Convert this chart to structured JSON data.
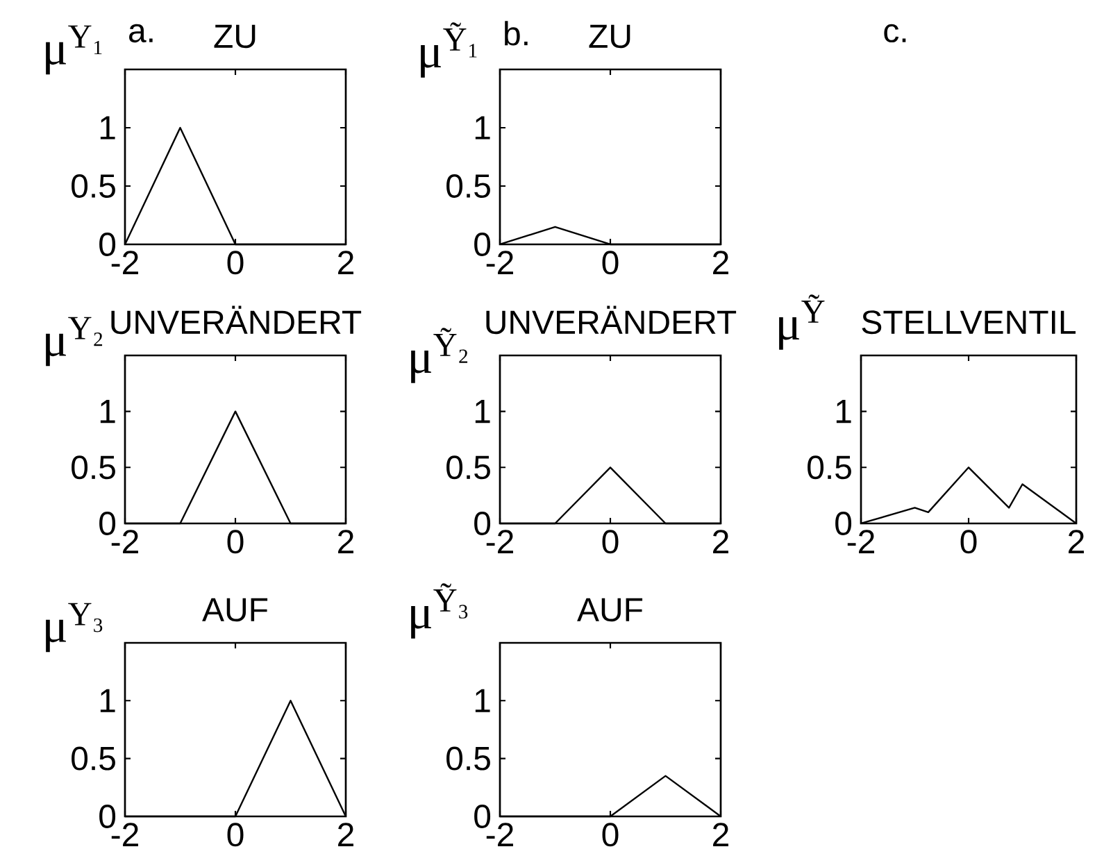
{
  "chart_data": [
    {
      "type": "line",
      "title": "ZU",
      "ylabel": "μ$^{Y₁}$",
      "annotations": [
        "a."
      ],
      "x": [
        -2,
        -1,
        0,
        2
      ],
      "values": [
        0,
        1,
        0,
        0
      ],
      "color": "#000000",
      "xlim": [
        -2,
        2
      ],
      "ylim": [
        0,
        1.5
      ],
      "xticks": [
        -2,
        0,
        2
      ],
      "yticks": [
        0,
        0.5,
        1
      ],
      "grid": false
    },
    {
      "type": "line",
      "title": "ZU",
      "ylabel": "μ$^{Ỹ₁}$",
      "annotations": [
        "b."
      ],
      "x": [
        -2,
        -1,
        0,
        2
      ],
      "values": [
        0,
        0.15,
        0,
        0
      ],
      "color": "#000000",
      "xlim": [
        -2,
        2
      ],
      "ylim": [
        0,
        1.5
      ],
      "xticks": [
        -2,
        0,
        2
      ],
      "yticks": [
        0,
        0.5,
        1
      ],
      "grid": false
    },
    {
      "type": "line",
      "title": "UNVERÄNDERT",
      "ylabel": "μ$^{Y₂}$",
      "x": [
        -2,
        -1,
        0,
        1,
        2
      ],
      "values": [
        0,
        0,
        1,
        0,
        0
      ],
      "color": "#000000",
      "xlim": [
        -2,
        2
      ],
      "ylim": [
        0,
        1.5
      ],
      "xticks": [
        -2,
        0,
        2
      ],
      "yticks": [
        0,
        0.5,
        1
      ],
      "grid": false
    },
    {
      "type": "line",
      "title": "UNVERÄNDERT",
      "ylabel": "μ$^{Ỹ₂}$",
      "x": [
        -2,
        -1,
        0,
        1,
        2
      ],
      "values": [
        0,
        0,
        0.5,
        0,
        0
      ],
      "color": "#000000",
      "xlim": [
        -2,
        2
      ],
      "ylim": [
        0,
        1.5
      ],
      "xticks": [
        -2,
        0,
        2
      ],
      "yticks": [
        0,
        0.5,
        1
      ],
      "grid": false
    },
    {
      "type": "line",
      "title": "STELLVENTIL",
      "ylabel": "μ$^{Ỹ}$",
      "annotations": [
        "c."
      ],
      "x": [
        -2,
        -1,
        -0.75,
        0,
        0.75,
        1,
        2
      ],
      "values": [
        0,
        0.14,
        0.1,
        0.5,
        0.14,
        0.35,
        0
      ],
      "color": "#000000",
      "xlim": [
        -2,
        2
      ],
      "ylim": [
        0,
        1.5
      ],
      "xticks": [
        -2,
        0,
        2
      ],
      "yticks": [
        0,
        0.5,
        1
      ],
      "grid": false
    },
    {
      "type": "line",
      "title": "AUF",
      "ylabel": "μ$^{Y₃}$",
      "x": [
        -2,
        0,
        1,
        2
      ],
      "values": [
        0,
        0,
        1,
        0
      ],
      "color": "#000000",
      "xlim": [
        -2,
        2
      ],
      "ylim": [
        0,
        1.5
      ],
      "xticks": [
        -2,
        0,
        2
      ],
      "yticks": [
        0,
        0.5,
        1
      ],
      "grid": false
    },
    {
      "type": "line",
      "title": "AUF",
      "ylabel": "μ$^{Ỹ₃}$",
      "x": [
        -2,
        0,
        1,
        2
      ],
      "values": [
        0,
        0,
        0.35,
        0
      ],
      "color": "#000000",
      "xlim": [
        -2,
        2
      ],
      "ylim": [
        0,
        1.5
      ],
      "xticks": [
        -2,
        0,
        2
      ],
      "yticks": [
        0,
        0.5,
        1
      ],
      "grid": false
    }
  ]
}
